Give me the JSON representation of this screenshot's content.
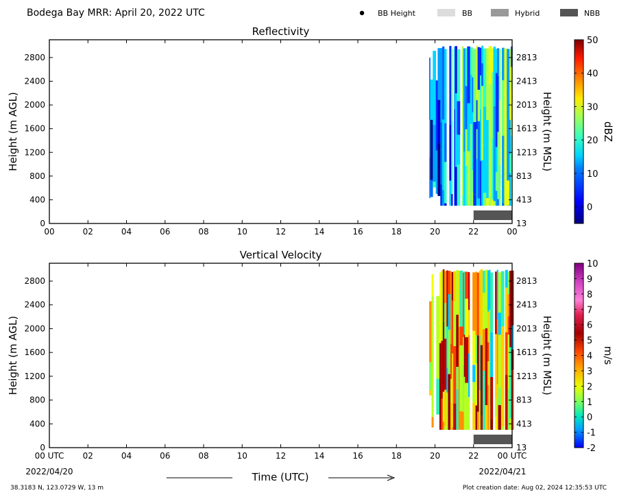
{
  "figure": {
    "title": "Bodega Bay MRR:  April 20, 2022 UTC",
    "legend": [
      {
        "label": "BB Height",
        "color": "#000000",
        "kind": "dot"
      },
      {
        "label": "BB",
        "color": "#dcdcdc",
        "kind": "box"
      },
      {
        "label": "Hybrid",
        "color": "#999999",
        "kind": "box"
      },
      {
        "label": "NBB",
        "color": "#555555",
        "kind": "box"
      }
    ],
    "xlabel": "Time (UTC)",
    "start_date": "2022/04/20",
    "end_date": "2022/04/21",
    "location": "38.3183 N, 123.0729 W, 13 m",
    "creation": "Plot creation date: Aug 02, 2024 12:35:53 UTC"
  },
  "chart_data": [
    {
      "type": "heatmap",
      "title": "Reflectivity",
      "ylabel": "Height (m AGL)",
      "ylabel_right": "Height (m MSL)",
      "xlim": [
        0,
        24
      ],
      "ylim": [
        0,
        3100
      ],
      "x_ticks": [
        "00",
        "02",
        "04",
        "06",
        "08",
        "10",
        "12",
        "14",
        "16",
        "18",
        "20",
        "22",
        "00"
      ],
      "y_ticks": [
        0,
        400,
        800,
        1200,
        1600,
        2000,
        2400,
        2800
      ],
      "y_ticks_right": [
        13,
        413,
        813,
        1213,
        1613,
        2013,
        2413,
        2813
      ],
      "data_window": {
        "x": [
          19.7,
          24
        ],
        "y": [
          300,
          3000
        ]
      },
      "nbb_segment": [
        22,
        24
      ],
      "colorbar": {
        "label": "dBZ",
        "min": -5,
        "max": 50,
        "ticks": [
          0,
          10,
          20,
          30,
          40,
          50
        ]
      }
    },
    {
      "type": "heatmap",
      "title": "Vertical Velocity",
      "ylabel": "Height (m AGL)",
      "ylabel_right": "Height (m MSL)",
      "xlim": [
        0,
        24
      ],
      "ylim": [
        0,
        3100
      ],
      "x_ticks": [
        "00 UTC",
        "02",
        "04",
        "06",
        "08",
        "10",
        "12",
        "14",
        "16",
        "18",
        "20",
        "22",
        "00 UTC"
      ],
      "y_ticks": [
        0,
        400,
        800,
        1200,
        1600,
        2000,
        2400,
        2800
      ],
      "y_ticks_right": [
        13,
        413,
        813,
        1213,
        1613,
        2013,
        2413,
        2813
      ],
      "data_window": {
        "x": [
          19.7,
          24
        ],
        "y": [
          300,
          3000
        ]
      },
      "nbb_segment": [
        22,
        24
      ],
      "colorbar": {
        "label": "m/s",
        "min": -2,
        "max": 10,
        "ticks": [
          -2,
          -1,
          0,
          1,
          2,
          3,
          4,
          5,
          6,
          7,
          8,
          9,
          10
        ]
      }
    }
  ]
}
